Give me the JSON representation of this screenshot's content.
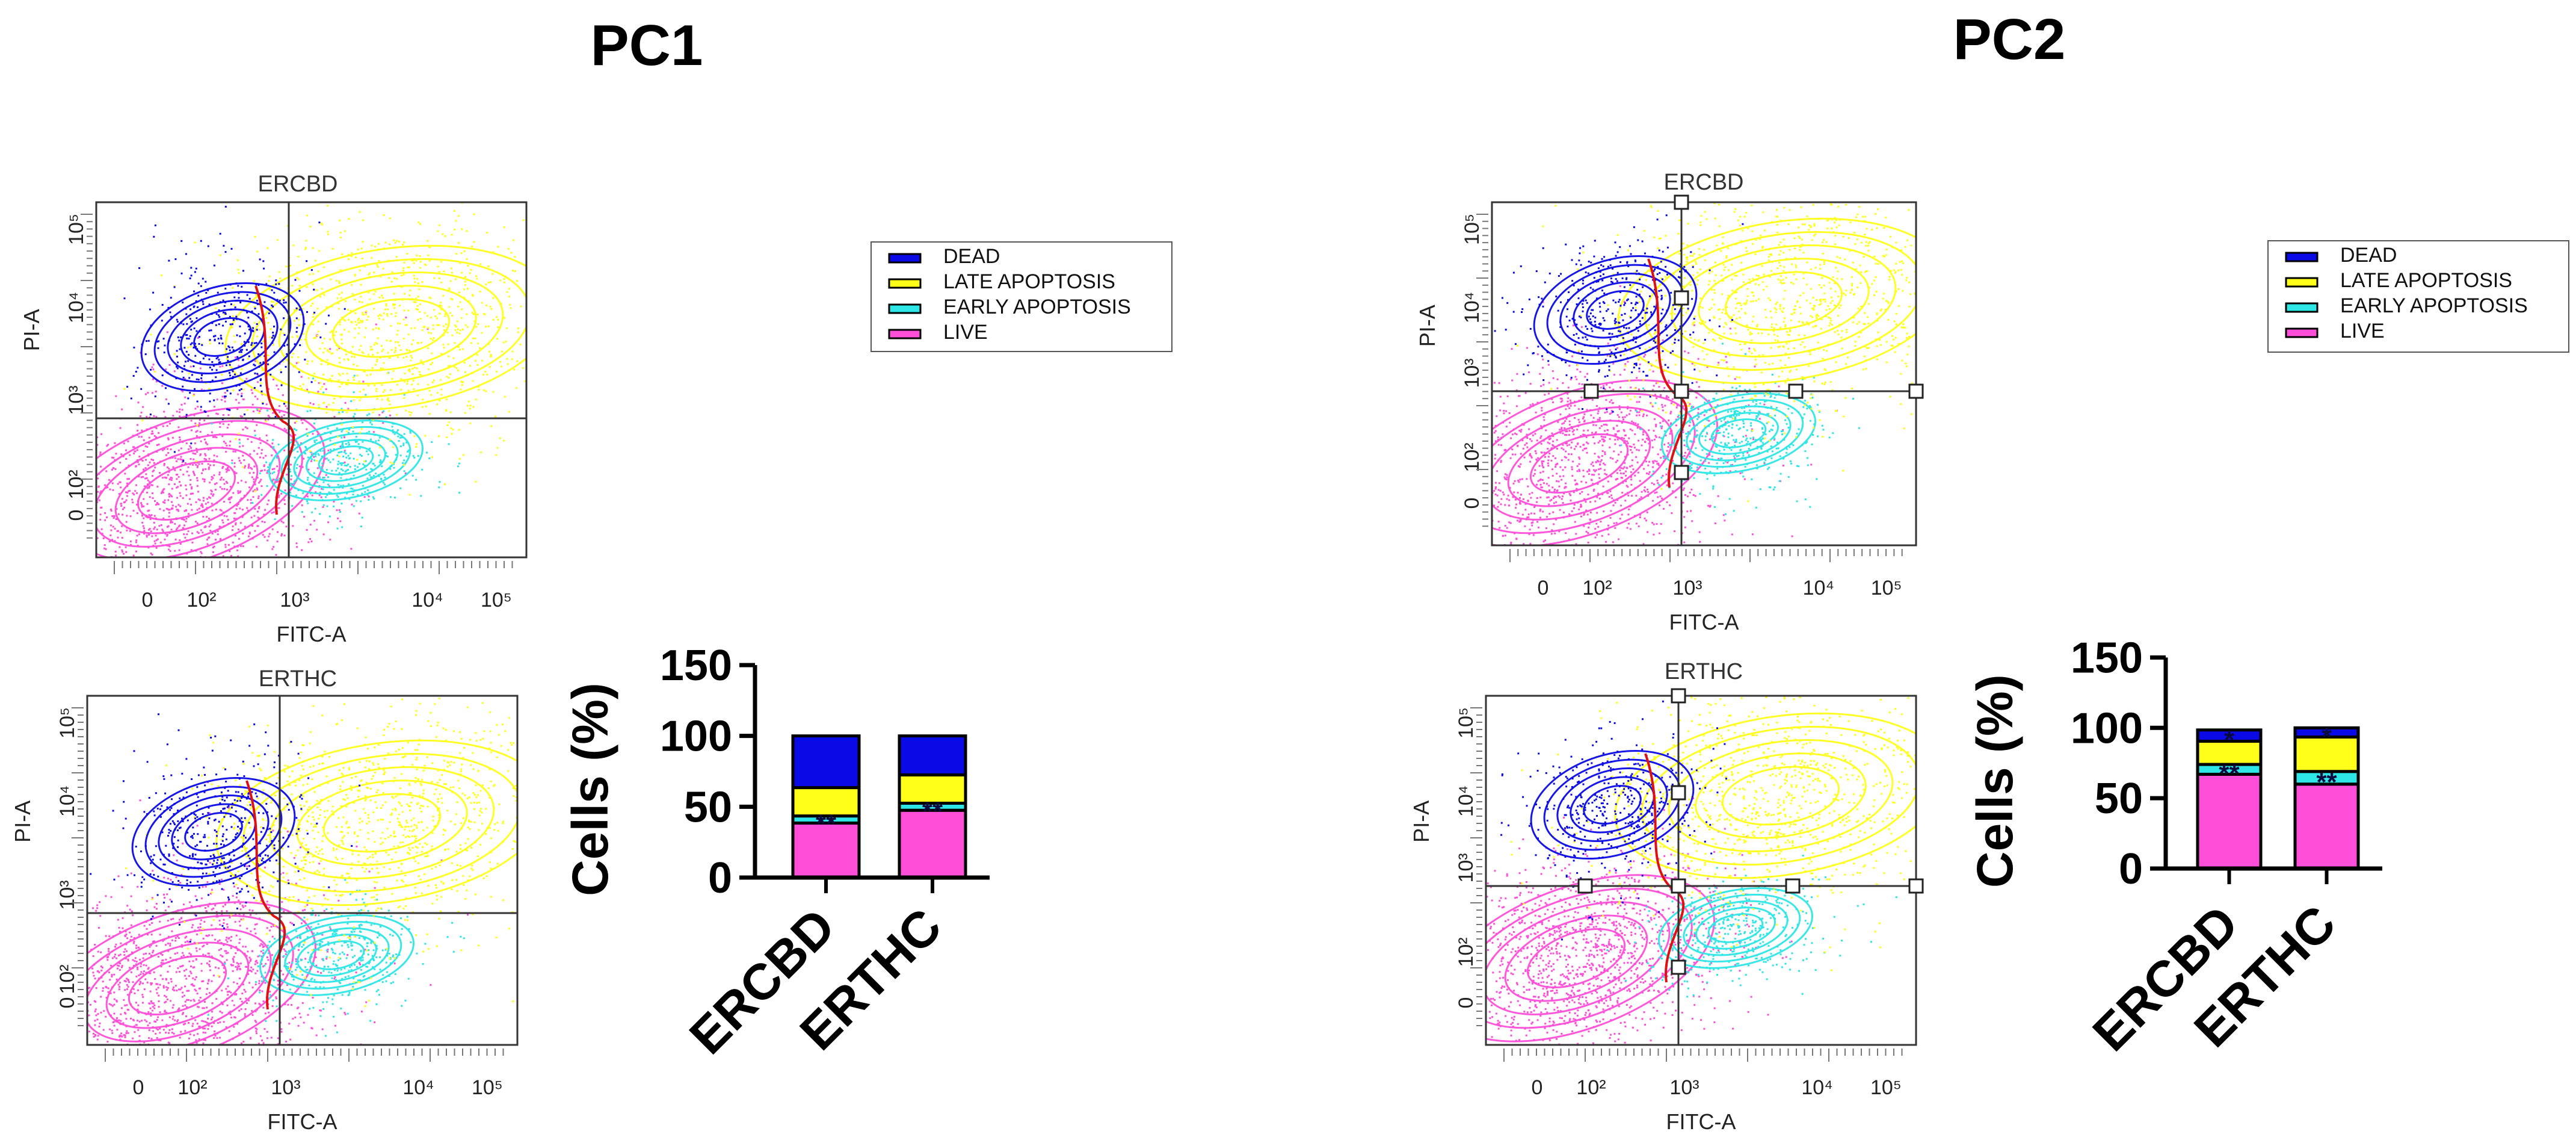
{
  "panel_titles": {
    "pc1": "PC1",
    "pc2": "PC2"
  },
  "flow_plots": [
    {
      "title": "ERCBD",
      "xlabel": "FITC-A",
      "ylabel": "PI-A",
      "xticks": [
        "0",
        "10²",
        "10³",
        "10⁴",
        "10⁵"
      ],
      "yticks": [
        "0",
        "10²",
        "10³",
        "10⁴",
        "10⁵"
      ]
    },
    {
      "title": "ERTHC",
      "xlabel": "FITC-A",
      "ylabel": "PI-A",
      "xticks": [
        "0",
        "10²",
        "10³",
        "10⁴",
        "10⁵"
      ],
      "yticks": [
        "0",
        "10²",
        "10³",
        "10⁴",
        "10⁵"
      ]
    },
    {
      "title": "ERCBD",
      "xlabel": "FITC-A",
      "ylabel": "PI-A",
      "xticks": [
        "0",
        "10²",
        "10³",
        "10⁴",
        "10⁵"
      ],
      "yticks": [
        "0",
        "10²",
        "10³",
        "10⁴",
        "10⁵"
      ]
    },
    {
      "title": "ERTHC",
      "xlabel": "FITC-A",
      "ylabel": "PI-A",
      "xticks": [
        "0",
        "10²",
        "10³",
        "10⁴",
        "10⁵"
      ],
      "yticks": [
        "0",
        "10²",
        "10³",
        "10⁴",
        "10⁵"
      ]
    }
  ],
  "colors": {
    "dead": "#0a0ae6",
    "late_apoptosis": "#ffff1a",
    "early_apoptosis": "#2ee6e6",
    "live": "#ff4fd8",
    "gate_red": "#e01010"
  },
  "chart_data": [
    {
      "type": "bar",
      "stacked": true,
      "panel": "PC1",
      "categories": [
        "ERCBD",
        "ERTHC"
      ],
      "ylabel": "Cells (%)",
      "ylim": [
        0,
        150
      ],
      "yticks": [
        0,
        50,
        100,
        150
      ],
      "legend": [
        "DEAD",
        "LATE APOPTOSIS",
        "EARLY APOPTOSIS",
        "LIVE"
      ],
      "series": [
        {
          "name": "LIVE",
          "values": [
            38.5,
            47.5
          ]
        },
        {
          "name": "EARLY APOPTOSIS",
          "values": [
            5,
            5
          ]
        },
        {
          "name": "LATE APOPTOSIS",
          "values": [
            20,
            20
          ]
        },
        {
          "name": "DEAD",
          "values": [
            36.5,
            27.5
          ]
        }
      ],
      "annotations": [
        {
          "category": "ERCBD",
          "segment": "EARLY APOPTOSIS",
          "text": "**"
        },
        {
          "category": "ERTHC",
          "segment": "EARLY APOPTOSIS",
          "text": "**"
        }
      ]
    },
    {
      "type": "bar",
      "stacked": true,
      "panel": "PC2",
      "categories": [
        "ERCBD",
        "ERTHC"
      ],
      "ylabel": "Cells (%)",
      "ylim": [
        0,
        150
      ],
      "yticks": [
        0,
        50,
        100,
        150
      ],
      "legend": [
        "DEAD",
        "LATE APOPTOSIS",
        "EARLY APOPTOSIS",
        "LIVE"
      ],
      "series": [
        {
          "name": "LIVE",
          "values": [
            67,
            60
          ]
        },
        {
          "name": "EARLY APOPTOSIS",
          "values": [
            7,
            9
          ]
        },
        {
          "name": "LATE APOPTOSIS",
          "values": [
            16.5,
            24.5
          ]
        },
        {
          "name": "DEAD",
          "values": [
            8,
            6.5
          ]
        }
      ],
      "annotations": [
        {
          "category": "ERCBD",
          "segment": "EARLY APOPTOSIS",
          "text": "**"
        },
        {
          "category": "ERTHC",
          "segment": "EARLY APOPTOSIS",
          "text": "**"
        },
        {
          "category": "ERCBD",
          "segment": "DEAD",
          "text": "*"
        },
        {
          "category": "ERTHC",
          "segment": "DEAD",
          "text": "*"
        }
      ]
    }
  ]
}
